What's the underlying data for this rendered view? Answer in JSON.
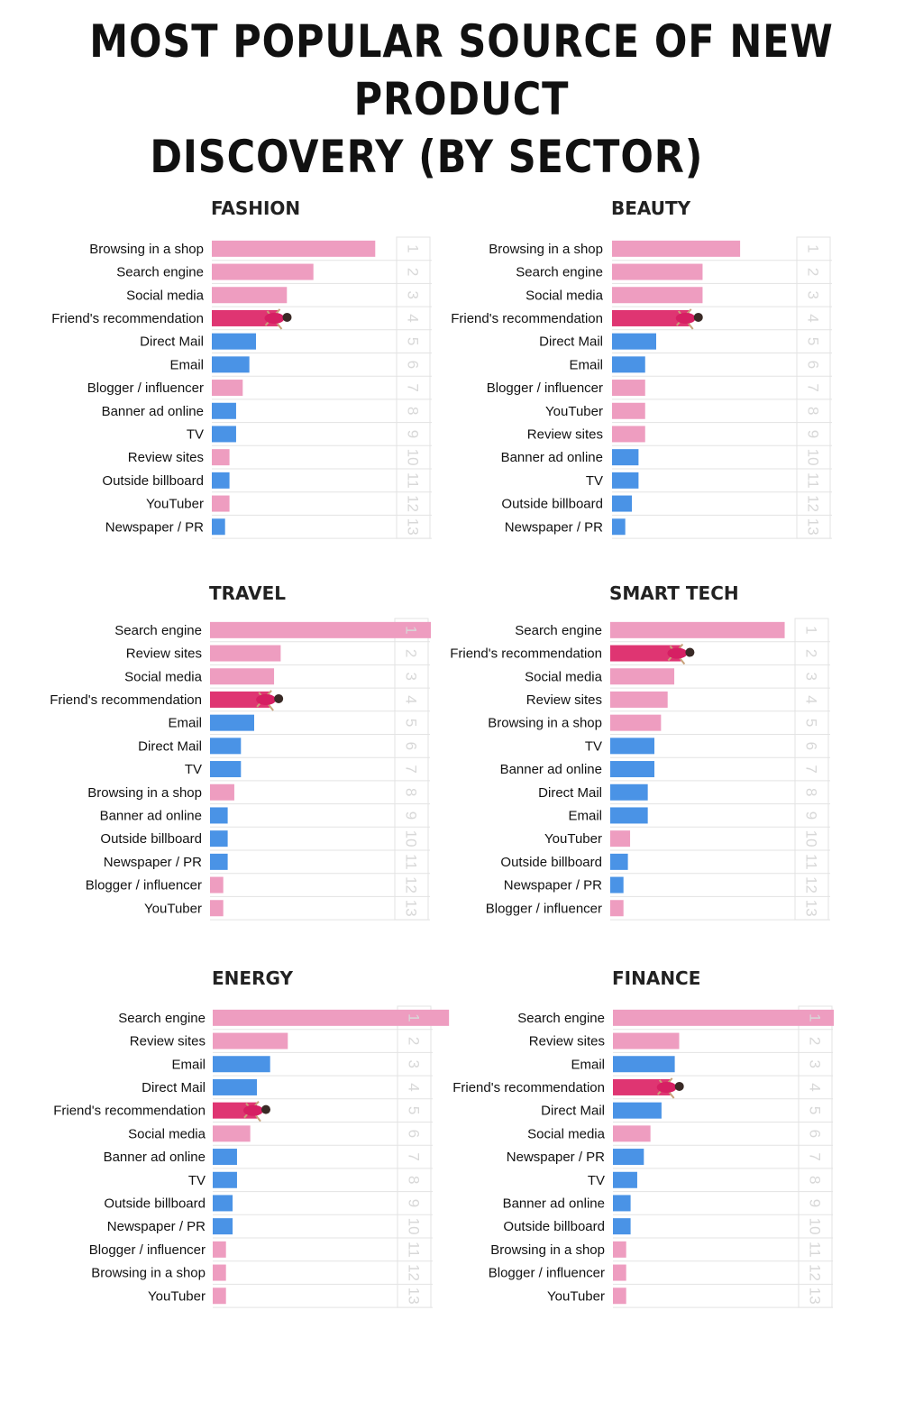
{
  "title": {
    "line1": "Most popular source of new product",
    "line2": "discovery (by sector)"
  },
  "colors": {
    "online": "#ee9dc0",
    "offline": "#4a93e6",
    "highlight": "#df3572",
    "grid": "#e3e3e3",
    "rank": "#d8d8d8"
  },
  "chart_data": [
    {
      "type": "bar",
      "title": "FASHION",
      "categories": [
        "Browsing in a shop",
        "Search engine",
        "Social media",
        "Friend's recommendation",
        "Direct Mail",
        "Email",
        "Blogger / influencer",
        "Banner ad online",
        "TV",
        "Review sites",
        "Outside billboard",
        "YouTuber",
        "Newspaper / PR"
      ],
      "values": [
        74,
        46,
        34,
        30,
        20,
        17,
        14,
        11,
        11,
        8,
        8,
        8,
        6
      ],
      "groups": [
        "pink",
        "pink",
        "pink",
        "highlight",
        "blue",
        "blue",
        "pink",
        "blue",
        "blue",
        "pink",
        "blue",
        "pink",
        "blue"
      ],
      "ranks": [
        "1",
        "2",
        "3",
        "4",
        "5",
        "6",
        "7",
        "8",
        "9",
        "10",
        "11",
        "12",
        "13"
      ]
    },
    {
      "type": "bar",
      "title": "BEAUTY",
      "categories": [
        "Browsing in a shop",
        "Search engine",
        "Social media",
        "Friend's recommendation",
        "Direct Mail",
        "Email",
        "Blogger / influencer",
        "YouTuber",
        "Review sites",
        "Banner ad online",
        "TV",
        "Outside billboard",
        "Newspaper / PR"
      ],
      "values": [
        58,
        41,
        41,
        35,
        20,
        15,
        15,
        15,
        15,
        12,
        12,
        9,
        6
      ],
      "groups": [
        "pink",
        "pink",
        "pink",
        "highlight",
        "blue",
        "blue",
        "pink",
        "pink",
        "pink",
        "blue",
        "blue",
        "blue",
        "blue"
      ],
      "ranks": [
        "1",
        "2",
        "3",
        "4",
        "5",
        "6",
        "7",
        "8",
        "9",
        "10",
        "11",
        "12",
        "13"
      ]
    },
    {
      "type": "bar",
      "title": "TRAVEL",
      "categories": [
        "Search engine",
        "Review sites",
        "Social media",
        "Friend's recommendation",
        "Email",
        "Direct Mail",
        "TV",
        "Browsing in a shop",
        "Banner ad online",
        "Outside billboard",
        "Newspaper / PR",
        "Blogger / influencer",
        "YouTuber"
      ],
      "values": [
        100,
        32,
        29,
        27,
        20,
        14,
        14,
        11,
        8,
        8,
        8,
        6,
        6
      ],
      "groups": [
        "pink",
        "pink",
        "pink",
        "highlight",
        "blue",
        "blue",
        "blue",
        "pink",
        "blue",
        "blue",
        "blue",
        "pink",
        "pink"
      ],
      "ranks": [
        "1",
        "2",
        "3",
        "4",
        "5",
        "6",
        "7",
        "8",
        "9",
        "10",
        "11",
        "12",
        "13"
      ]
    },
    {
      "type": "bar",
      "title": "SMART TECH",
      "categories": [
        "Search engine",
        "Friend's recommendation",
        "Social media",
        "Review sites",
        "Browsing in a shop",
        "TV",
        "Banner ad online",
        "Direct Mail",
        "Email",
        "YouTuber",
        "Outside billboard",
        "Newspaper / PR",
        "Blogger / influencer"
      ],
      "values": [
        79,
        32,
        29,
        26,
        23,
        20,
        20,
        17,
        17,
        9,
        8,
        6,
        6
      ],
      "groups": [
        "pink",
        "highlight",
        "pink",
        "pink",
        "pink",
        "blue",
        "blue",
        "blue",
        "blue",
        "pink",
        "blue",
        "blue",
        "pink"
      ],
      "ranks": [
        "1",
        "2",
        "3",
        "4",
        "5",
        "6",
        "7",
        "8",
        "9",
        "10",
        "11",
        "12",
        "13"
      ]
    },
    {
      "type": "bar",
      "title": "ENERGY",
      "categories": [
        "Search engine",
        "Review sites",
        "Email",
        "Direct Mail",
        "Friend's recommendation",
        "Social media",
        "Banner ad online",
        "TV",
        "Outside billboard",
        "Newspaper / PR",
        "Blogger / influencer",
        "Browsing in a shop",
        "YouTuber"
      ],
      "values": [
        107,
        34,
        26,
        20,
        20,
        17,
        11,
        11,
        9,
        9,
        6,
        6,
        6
      ],
      "groups": [
        "pink",
        "pink",
        "blue",
        "blue",
        "highlight",
        "pink",
        "blue",
        "blue",
        "blue",
        "blue",
        "pink",
        "pink",
        "pink"
      ],
      "ranks": [
        "1",
        "2",
        "3",
        "4",
        "5",
        "6",
        "7",
        "8",
        "9",
        "10",
        "11",
        "12",
        "13"
      ]
    },
    {
      "type": "bar",
      "title": "FINANCE",
      "categories": [
        "Search engine",
        "Review sites",
        "Email",
        "Friend's recommendation",
        "Direct Mail",
        "Social media",
        "Newspaper / PR",
        "TV",
        "Banner ad online",
        "Outside billboard",
        "Browsing in a shop",
        "Blogger / influencer",
        "YouTuber"
      ],
      "values": [
        100,
        30,
        28,
        26,
        22,
        17,
        14,
        11,
        8,
        8,
        6,
        6,
        6
      ],
      "groups": [
        "pink",
        "pink",
        "blue",
        "highlight",
        "blue",
        "pink",
        "blue",
        "blue",
        "blue",
        "blue",
        "pink",
        "pink",
        "pink"
      ],
      "ranks": [
        "1",
        "2",
        "3",
        "4",
        "5",
        "6",
        "7",
        "8",
        "9",
        "10",
        "11",
        "12",
        "13"
      ]
    }
  ]
}
